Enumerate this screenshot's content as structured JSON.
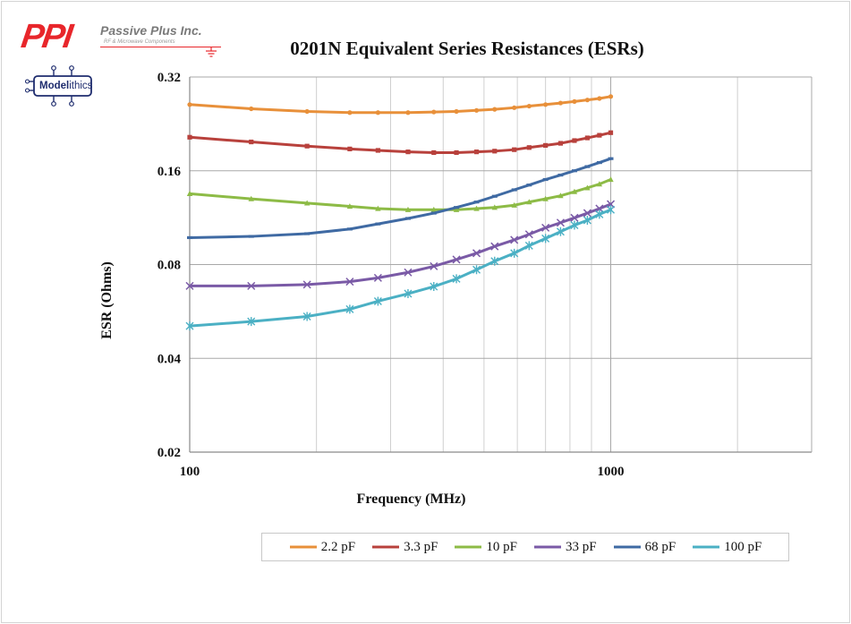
{
  "logos": {
    "ppi_mark": "PPI",
    "ppi_name": "Passive Plus Inc.",
    "ppi_tagline": "RF & Microwave Components",
    "modelithics_bold": "Model",
    "modelithics_light": "ithics"
  },
  "chart_data": {
    "type": "line",
    "title": "0201N Equivalent Series Resistances (ESRs)",
    "xlabel": "Frequency (MHz)",
    "ylabel": "ESR (Ohms)",
    "x_scale": "log",
    "y_scale": "log",
    "xlim": [
      100,
      3000
    ],
    "ylim": [
      0.02,
      0.32
    ],
    "x_ticks": [
      100,
      1000
    ],
    "x_tick_labels": [
      "100",
      "1000"
    ],
    "y_ticks": [
      0.02,
      0.04,
      0.08,
      0.16,
      0.32
    ],
    "y_tick_labels": [
      "0.02",
      "0.04",
      "0.08",
      "0.16",
      "0.32"
    ],
    "grid": true,
    "legend_position": "bottom",
    "x": [
      100,
      140,
      190,
      240,
      280,
      330,
      380,
      430,
      480,
      530,
      590,
      640,
      700,
      760,
      820,
      880,
      940,
      1000
    ],
    "series": [
      {
        "name": "2.2 pF",
        "color": "#e8903a",
        "marker": "dot",
        "values": [
          0.261,
          0.253,
          0.248,
          0.246,
          0.246,
          0.246,
          0.247,
          0.248,
          0.25,
          0.252,
          0.255,
          0.258,
          0.261,
          0.264,
          0.267,
          0.27,
          0.273,
          0.277
        ]
      },
      {
        "name": "3.3 pF",
        "color": "#b8413c",
        "marker": "square",
        "values": [
          0.205,
          0.198,
          0.192,
          0.188,
          0.186,
          0.184,
          0.183,
          0.183,
          0.184,
          0.185,
          0.187,
          0.19,
          0.193,
          0.196,
          0.2,
          0.204,
          0.208,
          0.212
        ]
      },
      {
        "name": "10 pF",
        "color": "#8dbb46",
        "marker": "triangle",
        "values": [
          0.135,
          0.13,
          0.126,
          0.123,
          0.121,
          0.12,
          0.12,
          0.12,
          0.121,
          0.122,
          0.124,
          0.127,
          0.13,
          0.133,
          0.137,
          0.141,
          0.145,
          0.15
        ]
      },
      {
        "name": "33 pF",
        "color": "#7a5aa6",
        "marker": "x",
        "values": [
          0.0683,
          0.0683,
          0.069,
          0.0705,
          0.0725,
          0.0755,
          0.079,
          0.083,
          0.087,
          0.0915,
          0.096,
          0.1,
          0.105,
          0.109,
          0.113,
          0.117,
          0.121,
          0.125
        ]
      },
      {
        "name": "68 pF",
        "color": "#3f6aa3",
        "marker": "dash",
        "values": [
          0.0976,
          0.0985,
          0.1005,
          0.104,
          0.108,
          0.1125,
          0.117,
          0.122,
          0.127,
          0.1325,
          0.139,
          0.144,
          0.15,
          0.155,
          0.16,
          0.165,
          0.17,
          0.175
        ]
      },
      {
        "name": "100 pF",
        "color": "#4bb0c4",
        "marker": "star",
        "values": [
          0.0508,
          0.0525,
          0.0545,
          0.0575,
          0.061,
          0.0645,
          0.068,
          0.072,
          0.077,
          0.082,
          0.087,
          0.092,
          0.097,
          0.102,
          0.107,
          0.111,
          0.116,
          0.12
        ]
      }
    ]
  }
}
